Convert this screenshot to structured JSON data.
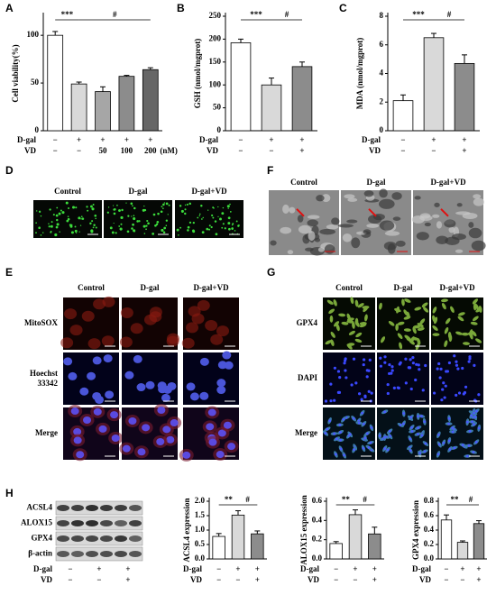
{
  "chart_data": [
    {
      "type": "bar",
      "label": "A",
      "y_label": "Cell viability(%)",
      "ylim": [
        0,
        120
      ],
      "yticks": [
        0,
        50,
        100
      ],
      "values": [
        100,
        49,
        41,
        57,
        64
      ],
      "errors": [
        4,
        2,
        5,
        1,
        2
      ],
      "colors": [
        "#ffffff",
        "#d9d9d9",
        "#a6a6a6",
        "#8c8c8c",
        "#666666"
      ],
      "annotations": [
        "***",
        "#"
      ],
      "row_labels": [
        {
          "name": "D-gal",
          "values": [
            "−",
            "+",
            "+",
            "+",
            "+"
          ]
        },
        {
          "name": "VD",
          "values": [
            "−",
            "−",
            "50",
            "100",
            "200"
          ]
        }
      ],
      "unit": "(nM)"
    },
    {
      "type": "bar",
      "label": "B",
      "y_label": "GSH (nmol/mgprot)",
      "ylim": [
        0,
        250
      ],
      "yticks": [
        0,
        50,
        100,
        150,
        200,
        250
      ],
      "values": [
        192,
        100,
        140
      ],
      "errors": [
        8,
        15,
        10
      ],
      "colors": [
        "#ffffff",
        "#d9d9d9",
        "#8c8c8c"
      ],
      "annotations": [
        "***",
        "#"
      ],
      "row_labels": [
        {
          "name": "D-gal",
          "values": [
            "−",
            "+",
            "+"
          ]
        },
        {
          "name": "VD",
          "values": [
            "−",
            "−",
            "+"
          ]
        }
      ]
    },
    {
      "type": "bar",
      "label": "C",
      "y_label": "MDA (nmol/mgprot)",
      "ylim": [
        0,
        8
      ],
      "yticks": [
        0,
        2,
        4,
        6,
        8
      ],
      "values": [
        2.1,
        6.5,
        4.7
      ],
      "errors": [
        0.4,
        0.3,
        0.6
      ],
      "colors": [
        "#ffffff",
        "#d9d9d9",
        "#8c8c8c"
      ],
      "annotations": [
        "***",
        "#"
      ],
      "row_labels": [
        {
          "name": "D-gal",
          "values": [
            "−",
            "+",
            "+"
          ]
        },
        {
          "name": "VD",
          "values": [
            "−",
            "−",
            "+"
          ]
        }
      ]
    },
    {
      "type": "bar",
      "y_label": "ACSL4 expression",
      "ylim": [
        0,
        2
      ],
      "yticks": [
        {
          "value": 0,
          "label": "0.0"
        },
        0.5,
        {
          "value": 1,
          "label": "1.0"
        },
        1.5,
        {
          "value": 2,
          "label": "2.0"
        }
      ],
      "values": [
        0.78,
        1.52,
        0.87
      ],
      "errors": [
        0.1,
        0.15,
        0.1
      ],
      "colors": [
        "#ffffff",
        "#d9d9d9",
        "#8c8c8c"
      ],
      "annotations": [
        "**",
        "#"
      ],
      "row_labels": [
        {
          "name": "D-gal",
          "values": [
            "−",
            "+",
            "+"
          ]
        },
        {
          "name": "VD",
          "values": [
            "−",
            "−",
            "+"
          ]
        }
      ]
    },
    {
      "type": "bar",
      "y_label": "ALOX15 expression",
      "ylim": [
        0,
        0.6
      ],
      "yticks": [
        {
          "value": 0,
          "label": "0.0"
        },
        0.2,
        0.4,
        0.6
      ],
      "values": [
        0.16,
        0.46,
        0.26
      ],
      "errors": [
        0.02,
        0.05,
        0.07
      ],
      "colors": [
        "#ffffff",
        "#d9d9d9",
        "#8c8c8c"
      ],
      "annotations": [
        "**",
        "#"
      ],
      "row_labels": [
        {
          "name": "D-gal",
          "values": [
            "−",
            "+",
            "+"
          ]
        },
        {
          "name": "VD",
          "values": [
            "−",
            "−",
            "+"
          ]
        }
      ]
    },
    {
      "type": "bar",
      "y_label": "GPX4 expression",
      "ylim": [
        0,
        0.8
      ],
      "yticks": [
        {
          "value": 0,
          "label": "0.0"
        },
        0.2,
        0.4,
        0.6,
        0.8
      ],
      "values": [
        0.54,
        0.23,
        0.49
      ],
      "errors": [
        0.07,
        0.02,
        0.04
      ],
      "colors": [
        "#ffffff",
        "#d9d9d9",
        "#8c8c8c"
      ],
      "annotations": [
        "**",
        "#"
      ],
      "row_labels": [
        {
          "name": "D-gal",
          "values": [
            "−",
            "+",
            "+"
          ]
        },
        {
          "name": "VD",
          "values": [
            "−",
            "−",
            "+"
          ]
        }
      ]
    }
  ],
  "panels": {
    "D": {
      "label": "D",
      "columns": [
        "Control",
        "D-gal",
        "D-gal+VD"
      ]
    },
    "F": {
      "label": "F",
      "columns": [
        "Control",
        "D-gal",
        "D-gal+VD"
      ]
    },
    "E": {
      "label": "E",
      "columns": [
        "Control",
        "D-gal",
        "D-gal+VD"
      ],
      "rows": [
        "MitoSOX",
        "Hoechst 33342",
        "Merge"
      ]
    },
    "G": {
      "label": "G",
      "columns": [
        "Control",
        "D-gal",
        "D-gal+VD"
      ],
      "rows": [
        "GPX4",
        "DAPI",
        "Merge"
      ]
    }
  },
  "blot": {
    "label": "H",
    "rows": [
      "ACSL4",
      "ALOX15",
      "GPX4",
      "β-actin"
    ],
    "treatments": [
      {
        "name": "D-gal",
        "values": [
          "−",
          "+",
          "+"
        ]
      },
      {
        "name": "VD",
        "values": [
          "−",
          "−",
          "+"
        ]
      }
    ]
  }
}
